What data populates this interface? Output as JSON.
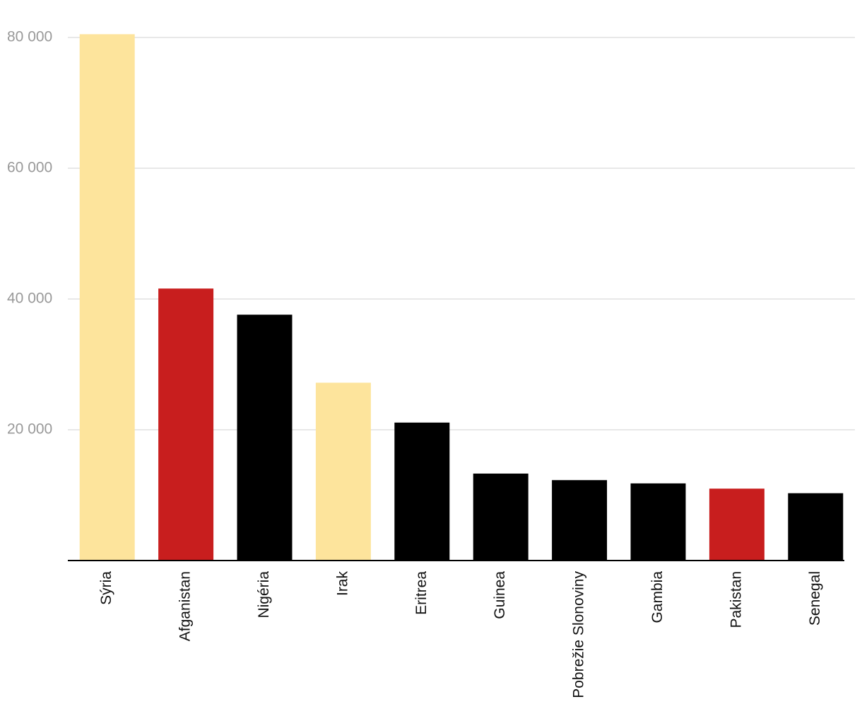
{
  "chart_data": {
    "type": "bar",
    "categories": [
      "Sýria",
      "Afganistan",
      "Nigéria",
      "Irak",
      "Eritrea",
      "Guinea",
      "Pobrežie Slonoviny",
      "Gambia",
      "Pakistan",
      "Senegal"
    ],
    "values": [
      80500,
      41600,
      37600,
      27200,
      21100,
      13300,
      12300,
      11800,
      11000,
      10300
    ],
    "colors": [
      "#fde49c",
      "#c81e1e",
      "#000000",
      "#fde49c",
      "#000000",
      "#000000",
      "#000000",
      "#000000",
      "#c81e1e",
      "#000000"
    ],
    "ylim": [
      0,
      80000
    ],
    "yticks": [
      {
        "value": 20000,
        "label": "20 000"
      },
      {
        "value": 40000,
        "label": "40 000"
      },
      {
        "value": 60000,
        "label": "60 000"
      },
      {
        "value": 80000,
        "label": "80 000"
      }
    ],
    "grid": true
  }
}
